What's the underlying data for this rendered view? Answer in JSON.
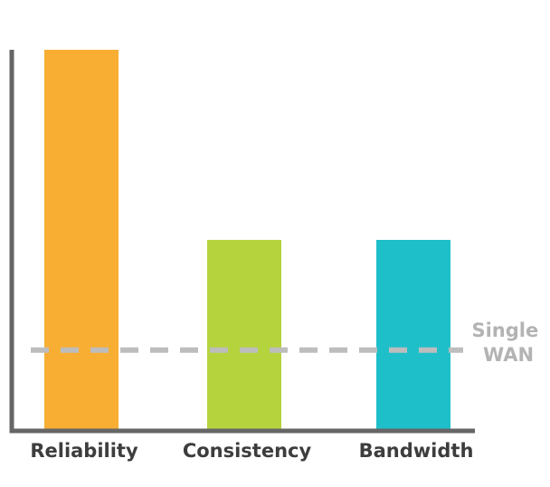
{
  "chart_data": {
    "type": "bar",
    "categories": [
      "Reliability",
      "Consistency",
      "Bandwidth"
    ],
    "values": [
      100,
      50,
      50
    ],
    "colors": [
      "#f7ae33",
      "#b5d33d",
      "#1fbfca"
    ],
    "ylim": [
      0,
      100
    ],
    "title": "",
    "xlabel": "",
    "ylabel": "",
    "grid": false,
    "axis_color": "#666666",
    "reference_line": {
      "value": 21,
      "label_lines": [
        "Single",
        "WAN"
      ],
      "style": "dashed",
      "color": "#bdbdbd"
    }
  }
}
